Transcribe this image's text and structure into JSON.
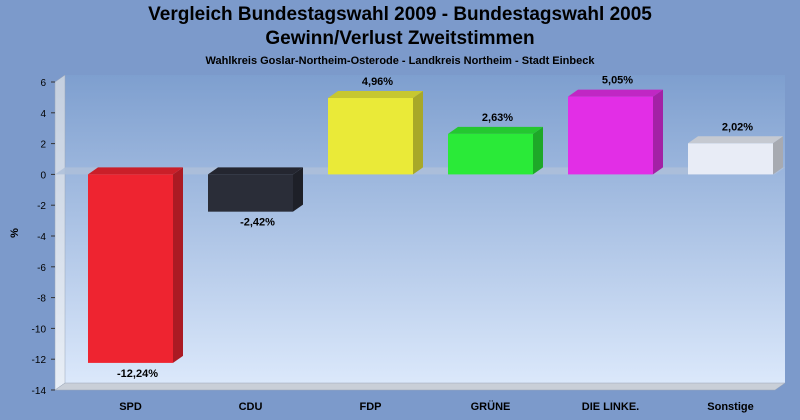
{
  "chart_data": {
    "type": "bar",
    "title": "Vergleich Bundestagswahl 2009 - Bundestagswahl 2005",
    "subtitle": "Gewinn/Verlust Zweitstimmen",
    "caption": "Wahlkreis Goslar-Northeim-Osterode - Landkreis Northeim - Stadt Einbeck",
    "ylabel": "%",
    "xlabel": "",
    "ylim": [
      -14,
      6
    ],
    "yticks": [
      6,
      4,
      2,
      0,
      -2,
      -4,
      -6,
      -8,
      -10,
      -12,
      -14
    ],
    "categories": [
      "SPD",
      "CDU",
      "FDP",
      "GRÜNE",
      "DIE LINKE.",
      "Sonstige"
    ],
    "values": [
      -12.24,
      -2.42,
      4.96,
      2.63,
      5.05,
      2.02
    ],
    "value_labels": [
      "-12,24%",
      "-2,42%",
      "4,96%",
      "2,63%",
      "5,05%",
      "2,02%"
    ],
    "colors": [
      "#ee2430",
      "#2a2d38",
      "#eaea38",
      "#2aea38",
      "#e22ee6",
      "#e8ecf6"
    ],
    "grid": false,
    "legend": "none"
  }
}
